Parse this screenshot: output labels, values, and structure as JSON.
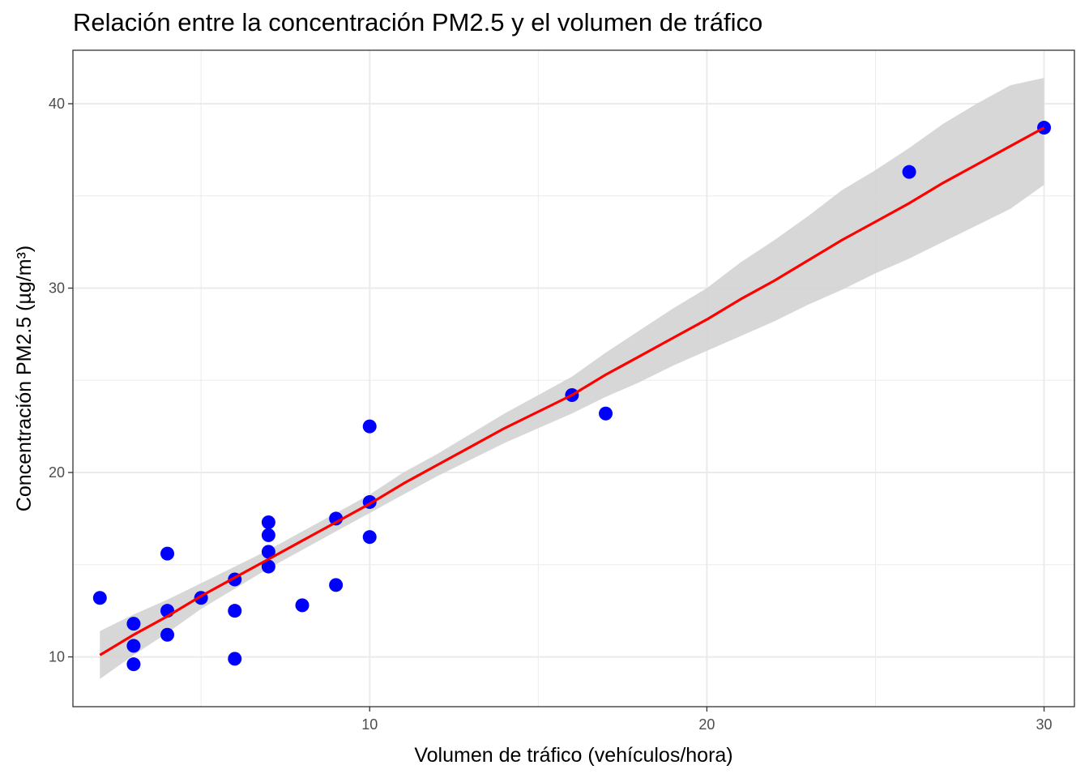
{
  "chart_data": {
    "type": "scatter",
    "title": "Relación entre la concentración PM2.5 y el volumen de tráfico",
    "xlabel": "Volumen de tráfico (vehículos/hora)",
    "ylabel": "Concentración PM2.5 (µg/m³)",
    "xlim": [
      1.2,
      30.9
    ],
    "ylim": [
      7.3,
      42.9
    ],
    "x_ticks": [
      10,
      20,
      30
    ],
    "y_ticks": [
      10,
      20,
      30,
      40
    ],
    "grid": true,
    "legend": "none",
    "point_color": "#0000ff",
    "line_color": "#ff0000",
    "band_color": "#d3d3d3",
    "points": [
      {
        "x": 2,
        "y": 13.2
      },
      {
        "x": 3,
        "y": 11.8
      },
      {
        "x": 3,
        "y": 10.6
      },
      {
        "x": 3,
        "y": 9.6
      },
      {
        "x": 4,
        "y": 15.6
      },
      {
        "x": 4,
        "y": 12.5
      },
      {
        "x": 4,
        "y": 11.2
      },
      {
        "x": 5,
        "y": 13.2
      },
      {
        "x": 6,
        "y": 14.2
      },
      {
        "x": 6,
        "y": 12.5
      },
      {
        "x": 6,
        "y": 9.9
      },
      {
        "x": 7,
        "y": 17.3
      },
      {
        "x": 7,
        "y": 16.6
      },
      {
        "x": 7,
        "y": 15.7
      },
      {
        "x": 7,
        "y": 14.9
      },
      {
        "x": 8,
        "y": 12.8
      },
      {
        "x": 9,
        "y": 17.5
      },
      {
        "x": 9,
        "y": 13.9
      },
      {
        "x": 10,
        "y": 22.5
      },
      {
        "x": 10,
        "y": 18.4
      },
      {
        "x": 10,
        "y": 16.5
      },
      {
        "x": 16,
        "y": 24.2
      },
      {
        "x": 17,
        "y": 23.2
      },
      {
        "x": 26,
        "y": 36.3
      },
      {
        "x": 30,
        "y": 38.7
      }
    ],
    "fit_line": {
      "x": [
        2,
        3,
        4,
        5,
        6,
        7,
        8,
        9,
        10,
        11,
        12,
        13,
        14,
        15,
        16,
        17,
        18,
        19,
        20,
        21,
        22,
        23,
        24,
        25,
        26,
        27,
        28,
        29,
        30
      ],
      "y": [
        10.1,
        11.2,
        12.2,
        13.3,
        14.3,
        15.3,
        16.3,
        17.3,
        18.3,
        19.4,
        20.4,
        21.4,
        22.4,
        23.3,
        24.2,
        25.3,
        26.3,
        27.3,
        28.3,
        29.4,
        30.4,
        31.5,
        32.6,
        33.6,
        34.6,
        35.7,
        36.7,
        37.7,
        38.7
      ],
      "ci_lower": [
        8.8,
        10.1,
        11.3,
        12.6,
        13.7,
        14.8,
        15.8,
        16.8,
        17.8,
        18.8,
        19.8,
        20.7,
        21.6,
        22.4,
        23.2,
        24.1,
        24.9,
        25.8,
        26.6,
        27.4,
        28.2,
        29.1,
        29.9,
        30.8,
        31.6,
        32.5,
        33.4,
        34.3,
        35.6
      ],
      "ci_upper": [
        11.4,
        12.3,
        13.1,
        14.0,
        14.9,
        15.8,
        16.8,
        17.8,
        18.8,
        20.0,
        21.0,
        22.1,
        23.2,
        24.2,
        25.2,
        26.5,
        27.7,
        28.9,
        30.0,
        31.4,
        32.6,
        33.9,
        35.3,
        36.4,
        37.6,
        38.9,
        40.0,
        41.0,
        41.4
      ]
    }
  }
}
